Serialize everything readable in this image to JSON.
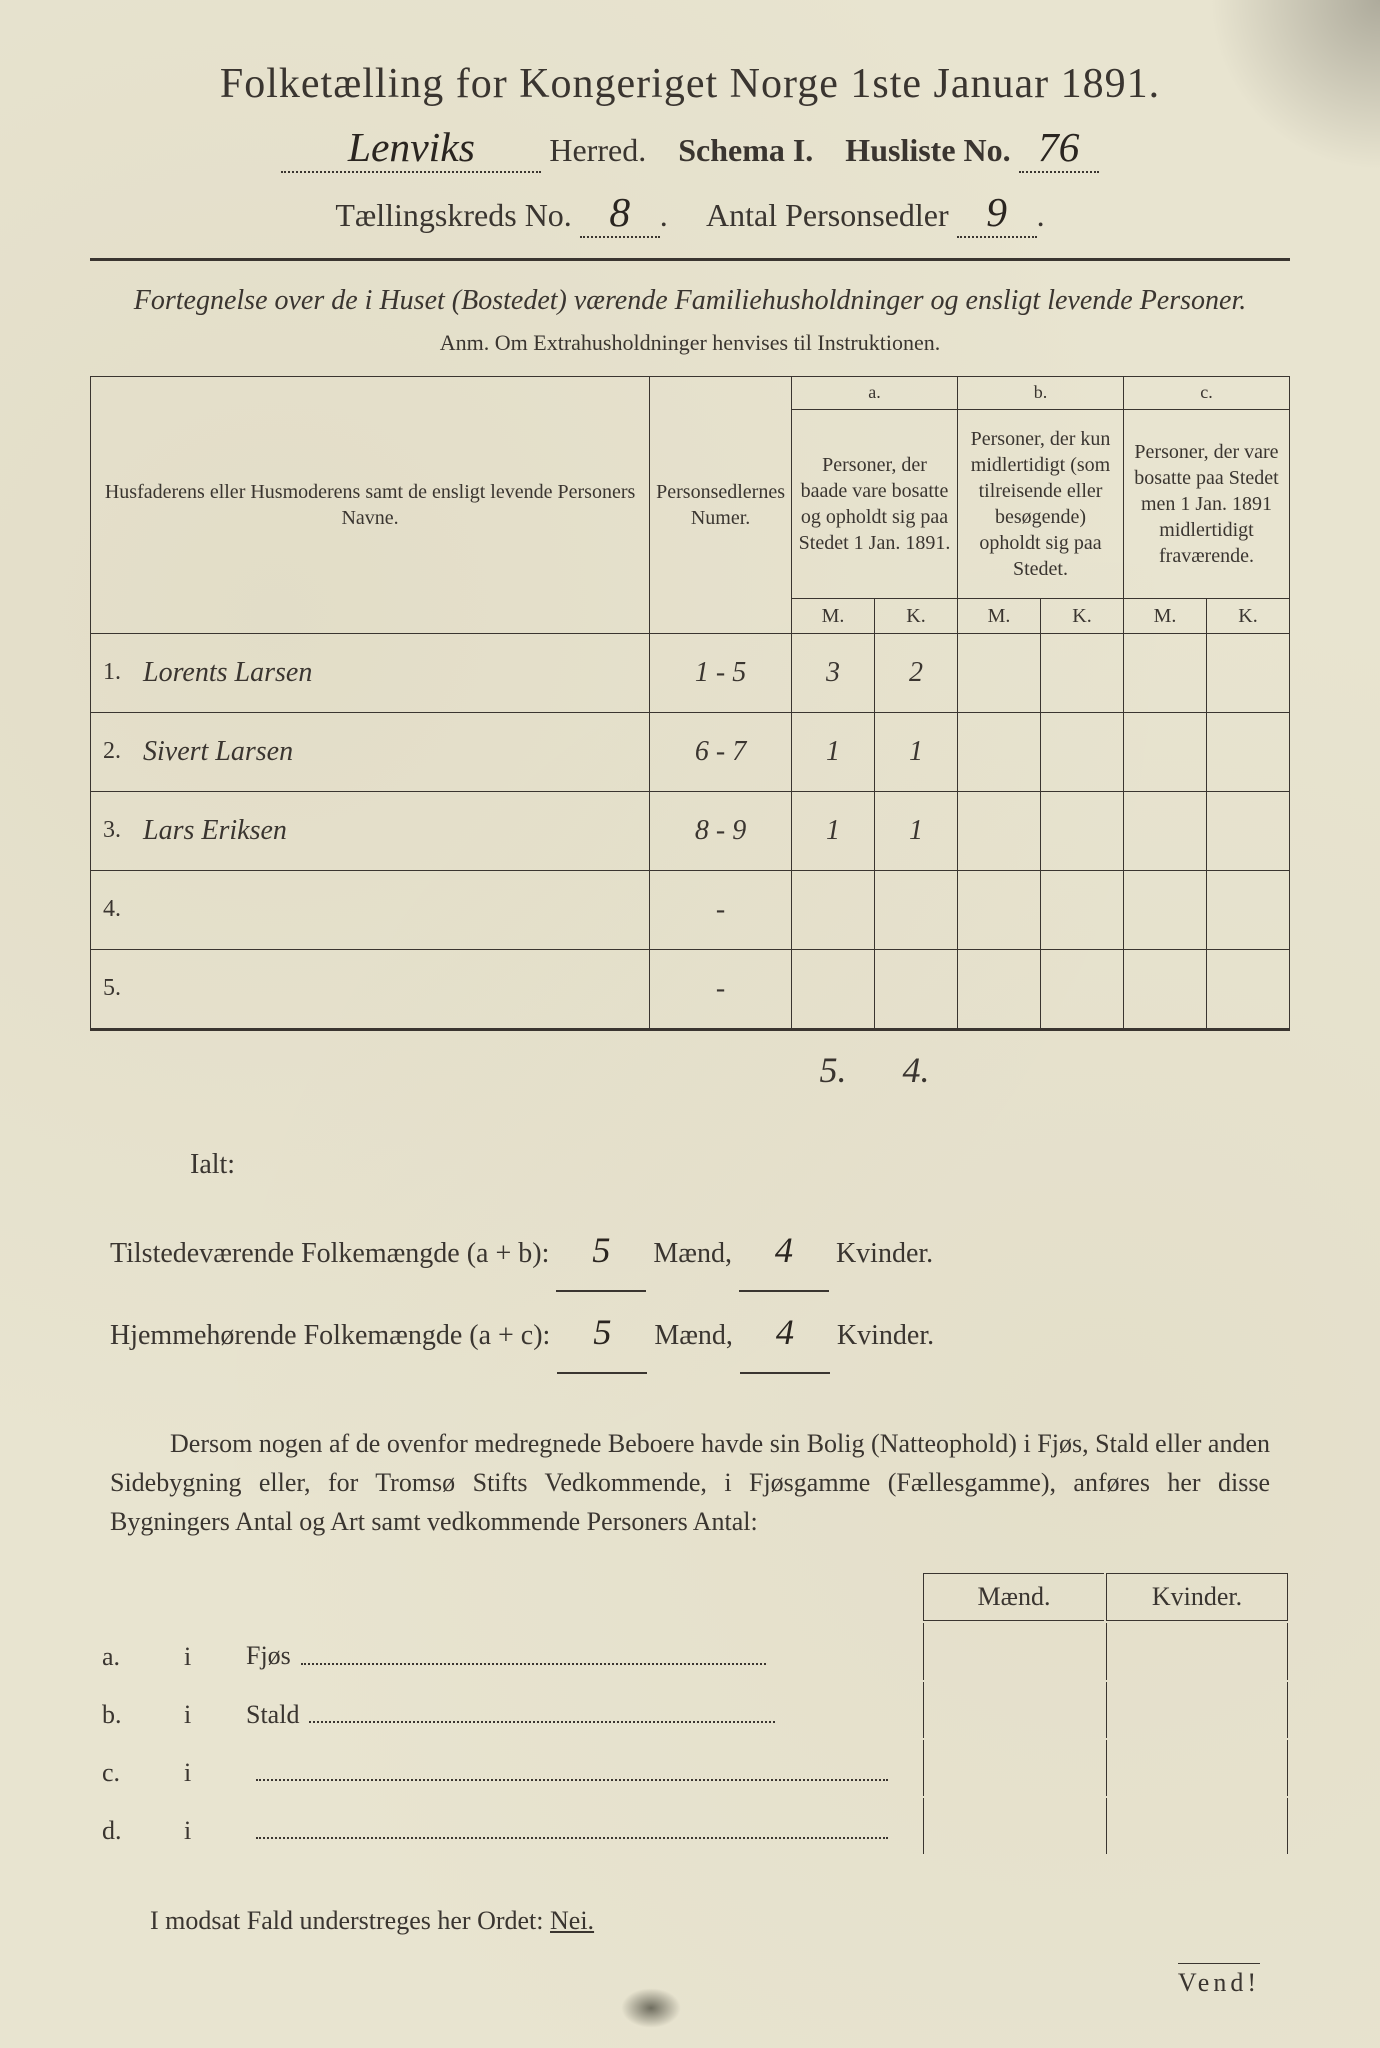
{
  "title": "Folketælling for Kongeriget Norge 1ste Januar 1891.",
  "herred": "Lenviks",
  "herred_label": "Herred.",
  "schema_label": "Schema I.",
  "husliste_label": "Husliste No.",
  "husliste_no": "76",
  "kreds_label": "Tællingskreds No.",
  "kreds_no": "8",
  "personsedler_label": "Antal Personsedler",
  "personsedler_no": "9",
  "subtitle": "Fortegnelse over de i Huset (Bostedet) værende Familiehusholdninger og ensligt levende Personer.",
  "anm": "Anm. Om Extrahusholdninger henvises til Instruktionen.",
  "col_name": "Husfaderens eller Husmoderens samt de ensligt levende Personers Navne.",
  "col_numer": "Personsedlernes Numer.",
  "col_a_label": "a.",
  "col_a_text": "Personer, der baade vare bosatte og opholdt sig paa Stedet 1 Jan. 1891.",
  "col_b_label": "b.",
  "col_b_text": "Personer, der kun midlertidigt (som tilreisende eller besøgende) opholdt sig paa Stedet.",
  "col_c_label": "c.",
  "col_c_text": "Personer, der vare bosatte paa Stedet men 1 Jan. 1891 midlertidigt fraværende.",
  "mk_m": "M.",
  "mk_k": "K.",
  "rows": [
    {
      "num": "1.",
      "name": "Lorents Larsen",
      "sedler": "1 - 5",
      "am": "3",
      "ak": "2",
      "bm": "",
      "bk": "",
      "cm": "",
      "ck": ""
    },
    {
      "num": "2.",
      "name": "Sivert Larsen",
      "sedler": "6 - 7",
      "am": "1",
      "ak": "1",
      "bm": "",
      "bk": "",
      "cm": "",
      "ck": ""
    },
    {
      "num": "3.",
      "name": "Lars Eriksen",
      "sedler": "8 - 9",
      "am": "1",
      "ak": "1",
      "bm": "",
      "bk": "",
      "cm": "",
      "ck": ""
    },
    {
      "num": "4.",
      "name": "",
      "sedler": "-",
      "am": "",
      "ak": "",
      "bm": "",
      "bk": "",
      "cm": "",
      "ck": ""
    },
    {
      "num": "5.",
      "name": "",
      "sedler": "-",
      "am": "",
      "ak": "",
      "bm": "",
      "bk": "",
      "cm": "",
      "ck": ""
    }
  ],
  "totals": {
    "am": "5",
    "ak": "4"
  },
  "ialt": "Ialt:",
  "tilstedev_label": "Tilstedeværende Folkemængde (a + b):",
  "hjemmeh_label": "Hjemmehørende Folkemængde (a + c):",
  "tilstedev_m": "5",
  "tilstedev_k": "4",
  "hjemmeh_m": "5",
  "hjemmeh_k": "4",
  "maend": "Mænd,",
  "kvinder": "Kvinder.",
  "body_text": "Dersom nogen af de ovenfor medregnede Beboere havde sin Bolig (Natteophold) i Fjøs, Stald eller anden Sidebygning eller, for Tromsø Stifts Vedkommende, i Fjøsgamme (Fællesgamme), anføres her disse Bygningers Antal og Art samt vedkommende Personers Antal:",
  "maend_h": "Mænd.",
  "kvinder_h": "Kvinder.",
  "lower_rows": [
    {
      "label": "a.",
      "i": "i",
      "type": "Fjøs"
    },
    {
      "label": "b.",
      "i": "i",
      "type": "Stald"
    },
    {
      "label": "c.",
      "i": "i",
      "type": ""
    },
    {
      "label": "d.",
      "i": "i",
      "type": ""
    }
  ],
  "footer": "I modsat Fald understreges her Ordet:",
  "nei": "Nei.",
  "vend": "Vend!"
}
